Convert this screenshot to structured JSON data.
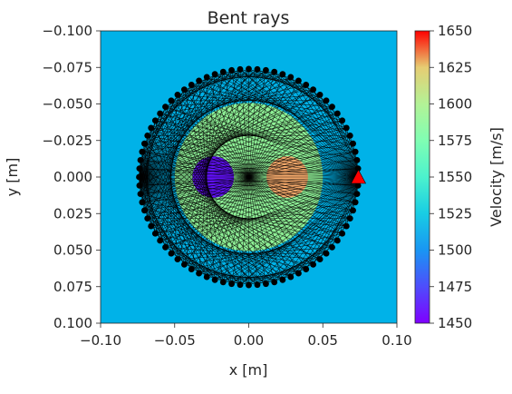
{
  "chart_data": {
    "type": "heatmap",
    "title": "Bent rays",
    "xlabel": "x [m]",
    "ylabel": "y [m]",
    "xlim": [
      -0.1,
      0.1
    ],
    "ylim": [
      -0.1,
      0.1
    ],
    "y_inverted": true,
    "x_ticks": [
      "−0.10",
      "−0.05",
      "0.00",
      "0.05",
      "0.10"
    ],
    "y_ticks": [
      "−0.100",
      "−0.075",
      "−0.050",
      "−0.025",
      "0.000",
      "0.025",
      "0.050",
      "0.075",
      "0.100"
    ],
    "x_tick_values": [
      -0.1,
      -0.05,
      0,
      0.05,
      0.1
    ],
    "y_tick_values": [
      -0.1,
      -0.075,
      -0.05,
      -0.025,
      0,
      0.025,
      0.05,
      0.075,
      0.1
    ],
    "colorbar": {
      "label": "Velocity [m/s]",
      "range": [
        1450,
        1650
      ],
      "ticks": [
        "1450",
        "1475",
        "1500",
        "1525",
        "1550",
        "1575",
        "1600",
        "1625",
        "1650"
      ],
      "tick_values": [
        1450,
        1475,
        1500,
        1525,
        1550,
        1575,
        1600,
        1625,
        1650
      ]
    },
    "velocity_model": {
      "background": 1500,
      "regions": [
        {
          "shape": "circle",
          "center": [
            0,
            0
          ],
          "radius": 0.05,
          "velocity": 1550
        },
        {
          "shape": "circle",
          "center": [
            -0.024,
            0
          ],
          "radius": 0.014,
          "velocity": 1450
        },
        {
          "shape": "circle",
          "center": [
            0.026,
            0
          ],
          "radius": 0.014,
          "velocity": 1600
        }
      ]
    },
    "transducers": {
      "count": 80,
      "ring_radius": 0.074,
      "color": "#000000"
    },
    "source": {
      "position": [
        0.074,
        0
      ],
      "color": "#ff0000",
      "marker": "triangle"
    },
    "rays": {
      "color": "#000000",
      "bending_regions": [
        {
          "center": [
            -0.024,
            0
          ],
          "radius": 0.014,
          "velocity": 1450
        },
        {
          "center": [
            0.026,
            0
          ],
          "radius": 0.014,
          "velocity": 1600
        }
      ]
    },
    "colors": {
      "background": "#00b2e8",
      "outer_circle": "#8ef096",
      "slow_inclusion": "#6010f5",
      "fast_inclusion": "#f3a86a"
    }
  }
}
